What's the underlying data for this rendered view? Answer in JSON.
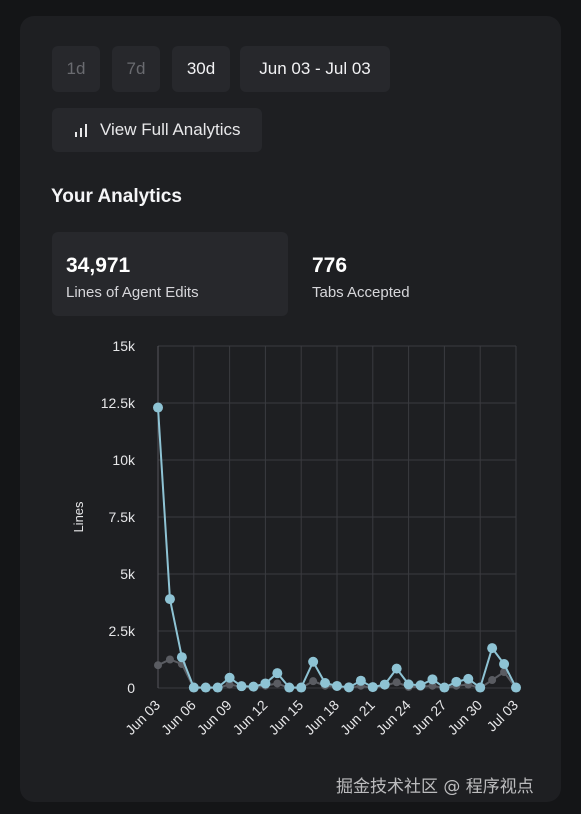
{
  "ranges": {
    "d1": "1d",
    "d7": "7d",
    "d30": "30d",
    "dates": "Jun 03 - Jul 03"
  },
  "view_full_label": "View Full Analytics",
  "section_title": "Your Analytics",
  "stats": [
    {
      "value": "34,971",
      "label": "Lines of Agent Edits"
    },
    {
      "value": "776",
      "label": "Tabs Accepted"
    }
  ],
  "watermark": "掘金技术社区 @ 程序视点",
  "colors": {
    "primary_series": "#8ec3d4",
    "secondary_series": "#5a5c62",
    "grid": "#3a3b40"
  },
  "chart_data": {
    "type": "line",
    "ylabel": "Lines",
    "ylim": [
      0,
      15000
    ],
    "y_ticks": [
      0,
      2500,
      5000,
      7500,
      10000,
      12500,
      15000
    ],
    "y_tick_labels": [
      "0",
      "2.5k",
      "5k",
      "7.5k",
      "10k",
      "12.5k",
      "15k"
    ],
    "x_tick_labels": [
      "Jun 03",
      "Jun 06",
      "Jun 09",
      "Jun 12",
      "Jun 15",
      "Jun 18",
      "Jun 21",
      "Jun 24",
      "Jun 27",
      "Jun 30",
      "Jul 03"
    ],
    "x_tick_index": [
      0,
      3,
      6,
      9,
      12,
      15,
      18,
      21,
      24,
      27,
      30
    ],
    "grid": true,
    "series": [
      {
        "values": [
          12300,
          3900,
          1350,
          20,
          20,
          20,
          450,
          80,
          60,
          200,
          650,
          20,
          20,
          1150,
          220,
          90,
          30,
          320,
          40,
          150,
          850,
          160,
          120,
          380,
          20,
          270,
          400,
          20,
          1750,
          1050,
          20
        ]
      },
      {
        "values": [
          1000,
          1250,
          1050,
          0,
          0,
          0,
          150,
          50,
          50,
          100,
          200,
          0,
          0,
          300,
          100,
          50,
          0,
          100,
          0,
          100,
          250,
          50,
          50,
          100,
          0,
          100,
          150,
          0,
          350,
          700,
          0
        ]
      }
    ]
  }
}
